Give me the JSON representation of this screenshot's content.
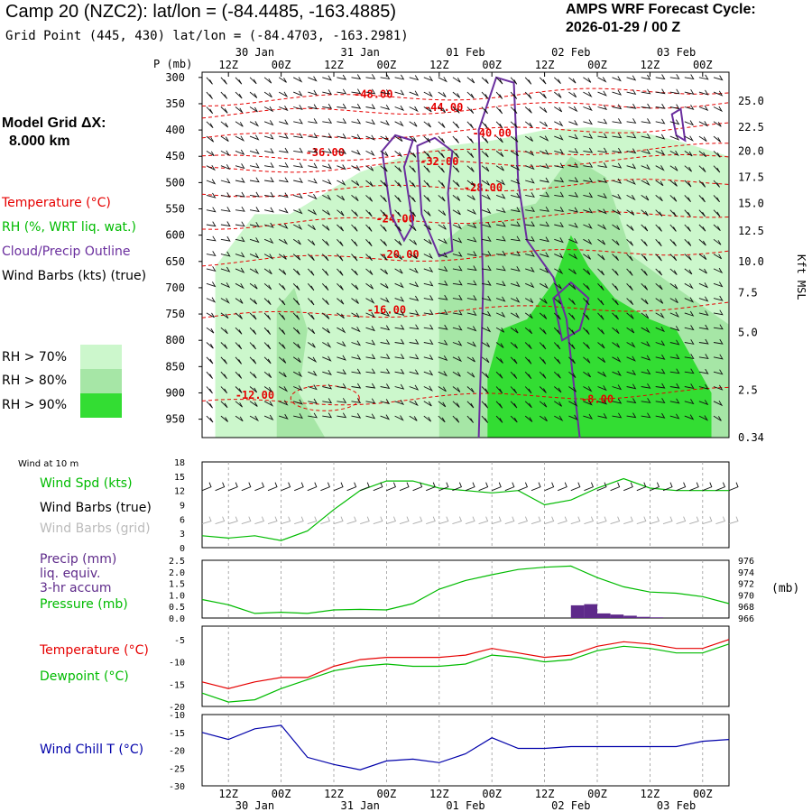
{
  "header": {
    "title": "Camp 20 (NZC2):  lat/lon = (-84.4485, -163.4885)",
    "grid_point": "Grid Point (445, 430) lat/lon = (-84.4703, -163.2981)",
    "cycle_line1": "AMPS WRF Forecast Cycle:",
    "cycle_line2": "2026-01-29 / 00  Z",
    "model_grid_line1": "Model Grid ΔX:",
    "model_grid_line2": "8.000 km"
  },
  "legend": {
    "temperature": "Temperature (°C)",
    "rh": "RH (%, WRT liq. wat.)",
    "cloud": "Cloud/Precip Outline",
    "wind": "Wind Barbs (kts) (true)",
    "rh70": "RH > 70%",
    "rh80": "RH > 80%",
    "rh90": "RH > 90%"
  },
  "colors": {
    "rh70": "#ccf7cc",
    "rh80": "#a6e6a6",
    "rh90": "#33dd33",
    "temperature": "#e60000",
    "rh_text": "#00bb00",
    "cloud": "#6a2e9e",
    "wind_chill": "#0000aa",
    "pressure": "#00bb00",
    "precip": "#5e2a8a",
    "grid": "#999999"
  },
  "time_axis": {
    "top_ticks": [
      "12Z",
      "00Z",
      "12Z",
      "00Z",
      "12Z",
      "00Z",
      "12Z",
      "00Z",
      "12Z",
      "00Z"
    ],
    "top_dates": [
      "30 Jan",
      "31 Jan",
      "01 Feb",
      "02 Feb",
      "03 Feb"
    ],
    "bottom_ticks": [
      "12Z",
      "00Z",
      "12Z",
      "00Z",
      "12Z",
      "00Z",
      "12Z",
      "00Z",
      "12Z",
      "00Z"
    ],
    "bottom_dates": [
      "30 Jan",
      "31 Jan",
      "01 Feb",
      "02 Feb",
      "03 Feb"
    ]
  },
  "chart_data": [
    {
      "type": "heatmap",
      "name": "cross-section",
      "y_axis_label": "P (mb)",
      "right_axis_label": "Kft MSL",
      "pressure_levels": [
        300,
        350,
        400,
        450,
        500,
        550,
        600,
        650,
        700,
        750,
        800,
        850,
        900,
        950
      ],
      "height_kft": [
        "25.0",
        "22.5",
        "20.0",
        "17.5",
        "15.0",
        "12.5",
        "10.0",
        "7.5",
        "5.0",
        "2.5",
        "0.34"
      ],
      "height_positions_mb": [
        345,
        395,
        440,
        490,
        540,
        592,
        650,
        710,
        785,
        895,
        985
      ],
      "x_hours": [
        12,
        132
      ],
      "temperature_contours": [
        {
          "label": "-48.00",
          "x": 51,
          "p": 332
        },
        {
          "label": "-44.00",
          "x": 67,
          "p": 357
        },
        {
          "label": "-40.00",
          "x": 78,
          "p": 406
        },
        {
          "label": "-36.00",
          "x": 40,
          "p": 443
        },
        {
          "label": "-32.00",
          "x": 66,
          "p": 460
        },
        {
          "label": "-28.00",
          "x": 76,
          "p": 510
        },
        {
          "label": "-24.00",
          "x": 56,
          "p": 569
        },
        {
          "label": "-20.00",
          "x": 57,
          "p": 637
        },
        {
          "label": "-16.00",
          "x": 54,
          "p": 742
        },
        {
          "label": "-12.00",
          "x": 24,
          "p": 904
        },
        {
          "label": "-8.00",
          "x": 102,
          "p": 912
        }
      ]
    },
    {
      "type": "line",
      "name": "wind-10m",
      "header": "Wind at 10 m",
      "labels": [
        "Wind Spd (kts)",
        "Wind Barbs (true)",
        "Wind Barbs (grid)"
      ],
      "yticks": [
        0,
        3,
        6,
        9,
        12,
        15,
        18
      ],
      "ylim": [
        0,
        18
      ],
      "x": [
        0,
        6,
        12,
        18,
        24,
        30,
        36,
        42,
        48,
        54,
        60,
        66,
        72,
        78,
        84,
        90,
        96,
        102,
        108,
        114,
        120
      ],
      "values": [
        2.5,
        2,
        2.5,
        1.5,
        3.5,
        8,
        12,
        14,
        14,
        12.5,
        12,
        11.5,
        12,
        9,
        10,
        12.5,
        14.5,
        12.5,
        12,
        12,
        12
      ]
    },
    {
      "type": "line",
      "name": "precip-pressure",
      "labels": [
        "Precip (mm)",
        "liq. equiv.",
        "3-hr accum",
        "Pressure (mb)"
      ],
      "right_label": "(mb)",
      "yticks": [
        "0.0",
        "0.5",
        "1.0",
        "1.5",
        "2.0",
        "2.5"
      ],
      "ylim": [
        0,
        2.5
      ],
      "right_ticks": [
        "966",
        "968",
        "970",
        "972",
        "974",
        "976"
      ],
      "right_ylim": [
        966,
        976
      ],
      "precip_bars": [
        {
          "x": 84,
          "value": 0.55
        },
        {
          "x": 87,
          "value": 0.6
        },
        {
          "x": 90,
          "value": 0.2
        },
        {
          "x": 93,
          "value": 0.15
        },
        {
          "x": 96,
          "value": 0.1
        },
        {
          "x": 99,
          "value": 0.05
        },
        {
          "x": 102,
          "value": 0.03
        }
      ],
      "pressure_x": [
        0,
        6,
        12,
        18,
        24,
        30,
        36,
        42,
        48,
        54,
        60,
        66,
        72,
        78,
        84,
        90,
        96,
        102,
        108,
        114,
        120
      ],
      "pressure_values": [
        969.2,
        968.3,
        966.8,
        967,
        966.8,
        967.4,
        967.5,
        967.4,
        968.5,
        971,
        972.5,
        973.5,
        974.4,
        974.8,
        975,
        973,
        971.4,
        970.5,
        970.3,
        969.7,
        968.5
      ]
    },
    {
      "type": "line",
      "name": "temp-dewpoint",
      "labels": [
        "Temperature (°C)",
        "Dewpoint (°C)"
      ],
      "yticks": [
        -20,
        -15,
        -10,
        -5
      ],
      "ylim": [
        -20,
        -2
      ],
      "x": [
        0,
        6,
        12,
        18,
        24,
        30,
        36,
        42,
        48,
        54,
        60,
        66,
        72,
        78,
        84,
        90,
        96,
        102,
        108,
        114,
        120
      ],
      "temperature": [
        -14.5,
        -16,
        -14.5,
        -13.5,
        -13.5,
        -11,
        -9.5,
        -9,
        -9,
        -9,
        -8.5,
        -7,
        -8,
        -9,
        -8.5,
        -6.5,
        -5.5,
        -6,
        -7,
        -7,
        -5
      ],
      "dewpoint": [
        -17,
        -19,
        -18.5,
        -16,
        -14,
        -12,
        -11,
        -10.5,
        -11,
        -11,
        -10.5,
        -8.5,
        -9,
        -10,
        -9.5,
        -7.5,
        -6.5,
        -7,
        -8,
        -8,
        -6
      ]
    },
    {
      "type": "line",
      "name": "wind-chill",
      "labels": [
        "Wind Chill T (°C)"
      ],
      "yticks": [
        -30,
        -25,
        -20,
        -15,
        -10
      ],
      "ylim": [
        -30,
        -10
      ],
      "x": [
        0,
        6,
        12,
        18,
        24,
        30,
        36,
        42,
        48,
        54,
        60,
        66,
        72,
        78,
        84,
        90,
        96,
        102,
        108,
        114,
        120
      ],
      "values": [
        -15,
        -17,
        -14,
        -13,
        -22,
        -24,
        -25.5,
        -23,
        -22.5,
        -23.5,
        -21,
        -16.5,
        -19.5,
        -19.5,
        -19,
        -19,
        -19,
        -19,
        -19,
        -17.5,
        -17
      ]
    }
  ]
}
